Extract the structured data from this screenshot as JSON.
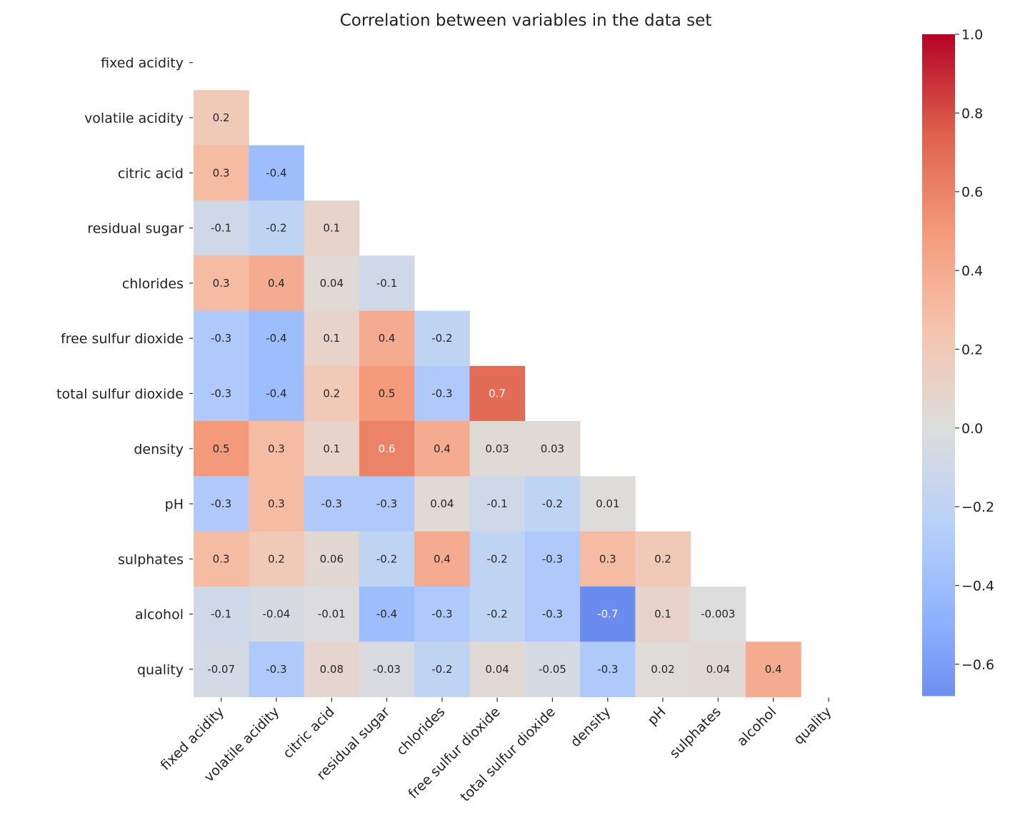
{
  "chart_data": {
    "type": "heatmap",
    "title": "Correlation between variables in the data set",
    "variables": [
      "fixed acidity",
      "volatile acidity",
      "citric acid",
      "residual sugar",
      "chlorides",
      "free sulfur dioxide",
      "total sulfur dioxide",
      "density",
      "pH",
      "sulphates",
      "alcohol",
      "quality"
    ],
    "mask": "upper-triangle-including-diagonal",
    "colormap": "coolwarm",
    "values": [
      [],
      [
        "0.2"
      ],
      [
        "0.3",
        "-0.4"
      ],
      [
        "-0.1",
        "-0.2",
        "0.1"
      ],
      [
        "0.3",
        "0.4",
        "0.04",
        "-0.1"
      ],
      [
        "-0.3",
        "-0.4",
        "0.1",
        "0.4",
        "-0.2"
      ],
      [
        "-0.3",
        "-0.4",
        "0.2",
        "0.5",
        "-0.3",
        "0.7"
      ],
      [
        "0.5",
        "0.3",
        "0.1",
        "0.6",
        "0.4",
        "0.03",
        "0.03"
      ],
      [
        "-0.3",
        "0.3",
        "-0.3",
        "-0.3",
        "0.04",
        "-0.1",
        "-0.2",
        "0.01"
      ],
      [
        "0.3",
        "0.2",
        "0.06",
        "-0.2",
        "0.4",
        "-0.2",
        "-0.3",
        "0.3",
        "0.2"
      ],
      [
        "-0.1",
        "-0.04",
        "-0.01",
        "-0.4",
        "-0.3",
        "-0.2",
        "-0.3",
        "-0.7",
        "0.1",
        "-0.003"
      ],
      [
        "-0.07",
        "-0.3",
        "0.08",
        "-0.03",
        "-0.2",
        "0.04",
        "-0.05",
        "-0.3",
        "0.02",
        "0.04",
        "0.4"
      ]
    ],
    "colorbar": {
      "range": [
        -0.68,
        1.0
      ],
      "ticks": [
        1.0,
        0.8,
        0.6,
        0.4,
        0.2,
        0.0,
        -0.2,
        -0.4,
        -0.6
      ],
      "tick_labels": [
        "1.0",
        "0.8",
        "0.6",
        "0.4",
        "0.2",
        "0.0",
        "−0.2",
        "−0.4",
        "−0.6"
      ],
      "placement": "right"
    }
  }
}
